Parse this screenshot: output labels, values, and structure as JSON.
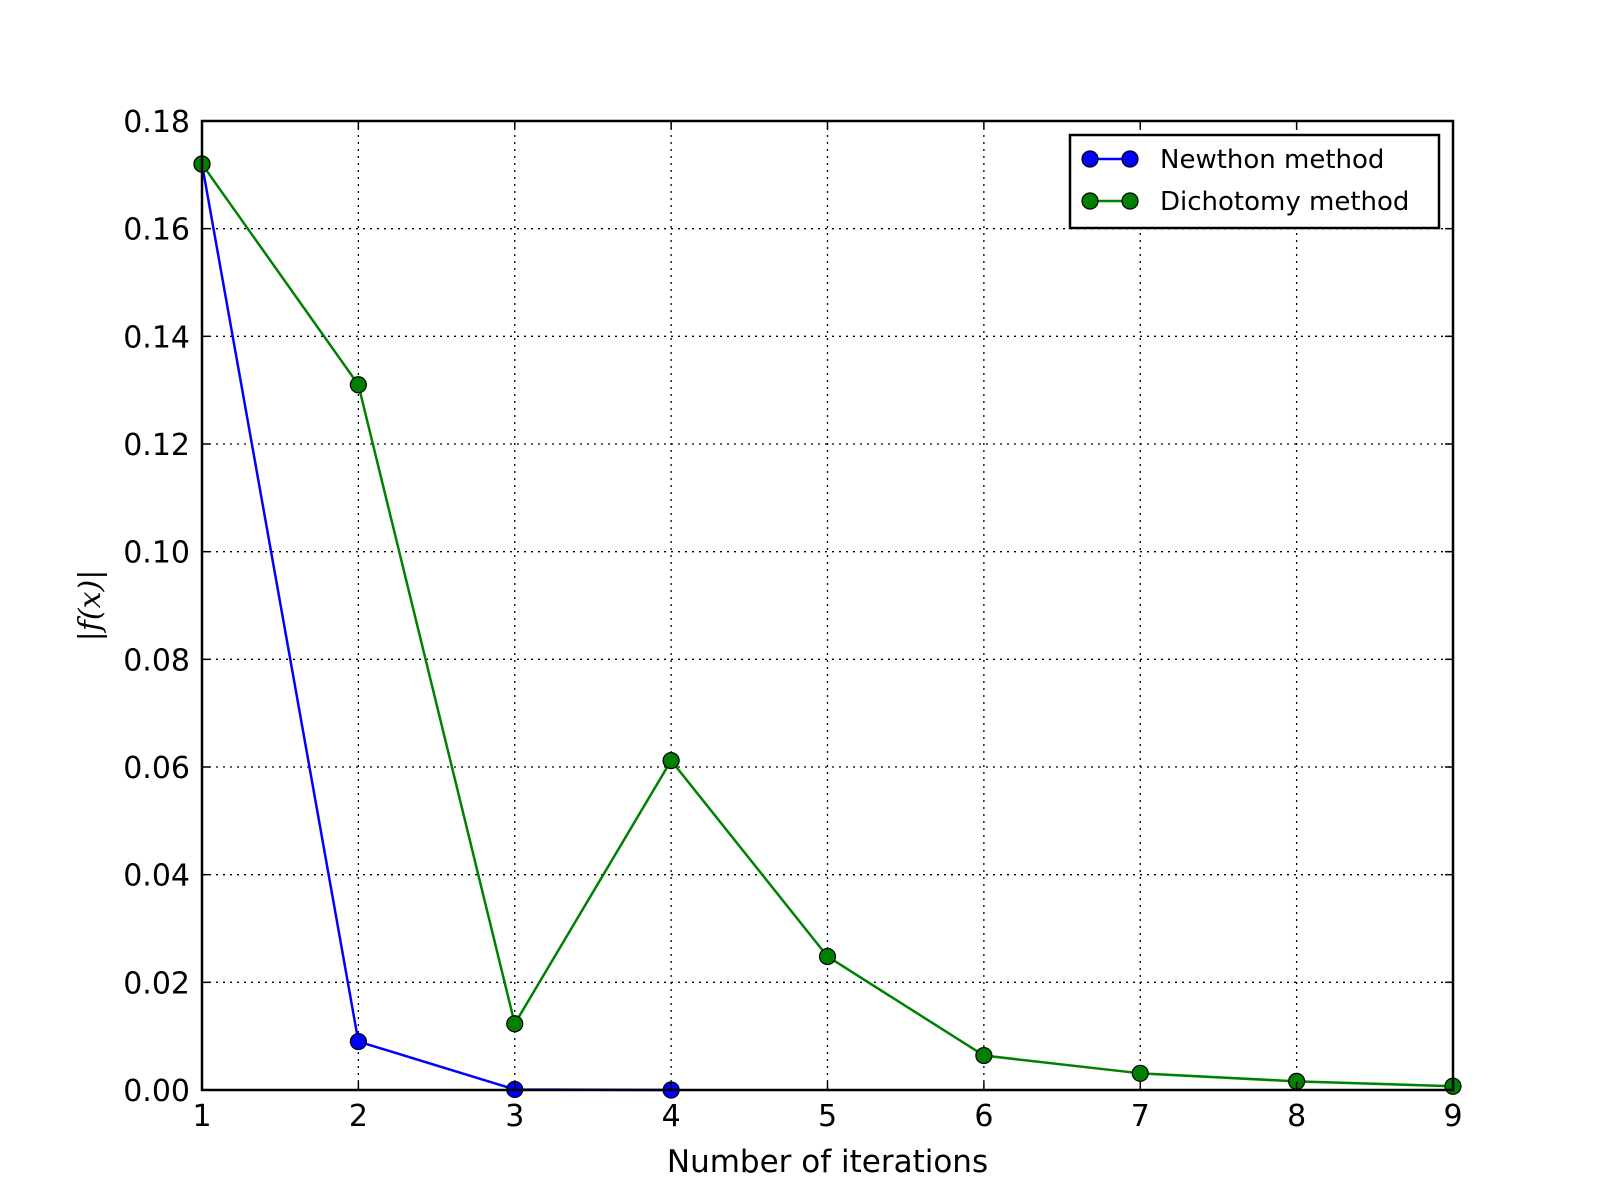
{
  "chart_data": {
    "type": "line",
    "xlabel": "Number of iterations",
    "ylabel": "|f(x)|",
    "xlim": [
      1,
      9
    ],
    "ylim": [
      0,
      0.18
    ],
    "xticks": [
      "1",
      "2",
      "3",
      "4",
      "5",
      "6",
      "7",
      "8",
      "9"
    ],
    "yticks": [
      "0.00",
      "0.02",
      "0.04",
      "0.06",
      "0.08",
      "0.10",
      "0.12",
      "0.14",
      "0.16",
      "0.18"
    ],
    "grid": true,
    "legend_position": "top-right",
    "series": [
      {
        "name": "Newthon method",
        "color": "#0000ff",
        "x": [
          1,
          2,
          3,
          4
        ],
        "y": [
          0.172,
          0.009,
          0.0001,
          0.0
        ]
      },
      {
        "name": "Dichotomy method",
        "color": "#008000",
        "x": [
          1,
          2,
          3,
          4,
          5,
          6,
          7,
          8,
          9
        ],
        "y": [
          0.172,
          0.131,
          0.0123,
          0.0612,
          0.0248,
          0.0064,
          0.0031,
          0.0016,
          0.0007
        ]
      }
    ]
  }
}
